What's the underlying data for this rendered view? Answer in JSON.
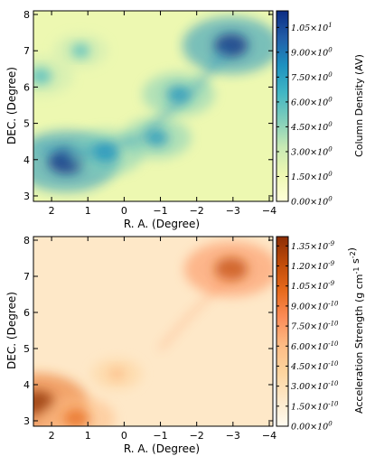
{
  "chart_data": [
    {
      "type": "heatmap",
      "panel": "top",
      "title": "",
      "xlabel": "R. A. (Degree)",
      "ylabel": "DEC. (Degree)",
      "xlim": [
        2.5,
        -4.1
      ],
      "ylim": [
        2.85,
        8.1
      ],
      "xticks": [
        2,
        1,
        0,
        -1,
        -2,
        -3,
        -4
      ],
      "yticks": [
        3,
        4,
        5,
        6,
        7,
        8
      ],
      "colorbar": {
        "label": "Column Density (AV)",
        "ticks": [
          "0.00×10^0",
          "1.50×10^0",
          "3.00×10^0",
          "4.50×10^0",
          "6.00×10^0",
          "7.50×10^0",
          "9.00×10^0",
          "1.05×10^1"
        ],
        "tick_values": [
          0,
          1.5,
          3.0,
          4.5,
          6.0,
          7.5,
          9.0,
          10.5
        ],
        "range": [
          0,
          11.5
        ],
        "colors": [
          "#ffffd9",
          "#edf8b1",
          "#c7e9b4",
          "#7fcdbb",
          "#41b6c4",
          "#1d91c0",
          "#225ea8",
          "#0c2c84"
        ]
      },
      "features": [
        {
          "ra": 1.6,
          "dec": 3.95,
          "strength": 1.0
        },
        {
          "ra": 0.5,
          "dec": 4.2,
          "strength": 0.6
        },
        {
          "ra": -0.9,
          "dec": 4.6,
          "strength": 0.5
        },
        {
          "ra": -2.95,
          "dec": 7.15,
          "strength": 0.9
        },
        {
          "ra": -1.5,
          "dec": 5.8,
          "strength": 0.55
        },
        {
          "ra": 2.3,
          "dec": 6.3,
          "strength": 0.45
        },
        {
          "ra": 1.2,
          "dec": 7.0,
          "strength": 0.3
        }
      ]
    },
    {
      "type": "heatmap",
      "panel": "bottom",
      "title": "",
      "xlabel": "R. A. (Degree)",
      "ylabel": "DEC. (Degree)",
      "xlim": [
        2.5,
        -4.1
      ],
      "ylim": [
        2.85,
        8.1
      ],
      "xticks": [
        2,
        1,
        0,
        -1,
        -2,
        -3,
        -4
      ],
      "yticks": [
        3,
        4,
        5,
        6,
        7,
        8
      ],
      "colorbar": {
        "label": "Acceleration Strength (g cm^-1 s^-2)",
        "ticks": [
          "0.00×10^0",
          "1.50×10^-10",
          "3.00×10^-10",
          "4.50×10^-10",
          "6.00×10^-10",
          "7.50×10^-10",
          "9.00×10^-10",
          "1.05×10^-9",
          "1.20×10^-9",
          "1.35×10^-9"
        ],
        "tick_values": [
          0,
          1.5e-10,
          3e-10,
          4.5e-10,
          6e-10,
          7.5e-10,
          9e-10,
          1.05e-09,
          1.2e-09,
          1.35e-09
        ],
        "range": [
          0,
          1.42e-09
        ],
        "colors": [
          "#fffbf0",
          "#fee8c8",
          "#fdd49e",
          "#fdbb84",
          "#fc8d59",
          "#e76a1c",
          "#c04b0a",
          "#8c2d04"
        ]
      },
      "features": [
        {
          "ra": 2.4,
          "dec": 3.5,
          "strength": 0.95
        },
        {
          "ra": 1.3,
          "dec": 3.05,
          "strength": 0.6
        },
        {
          "ra": -2.95,
          "dec": 7.2,
          "strength": 0.85
        },
        {
          "ra": 0.2,
          "dec": 4.3,
          "strength": 0.25
        }
      ]
    }
  ]
}
